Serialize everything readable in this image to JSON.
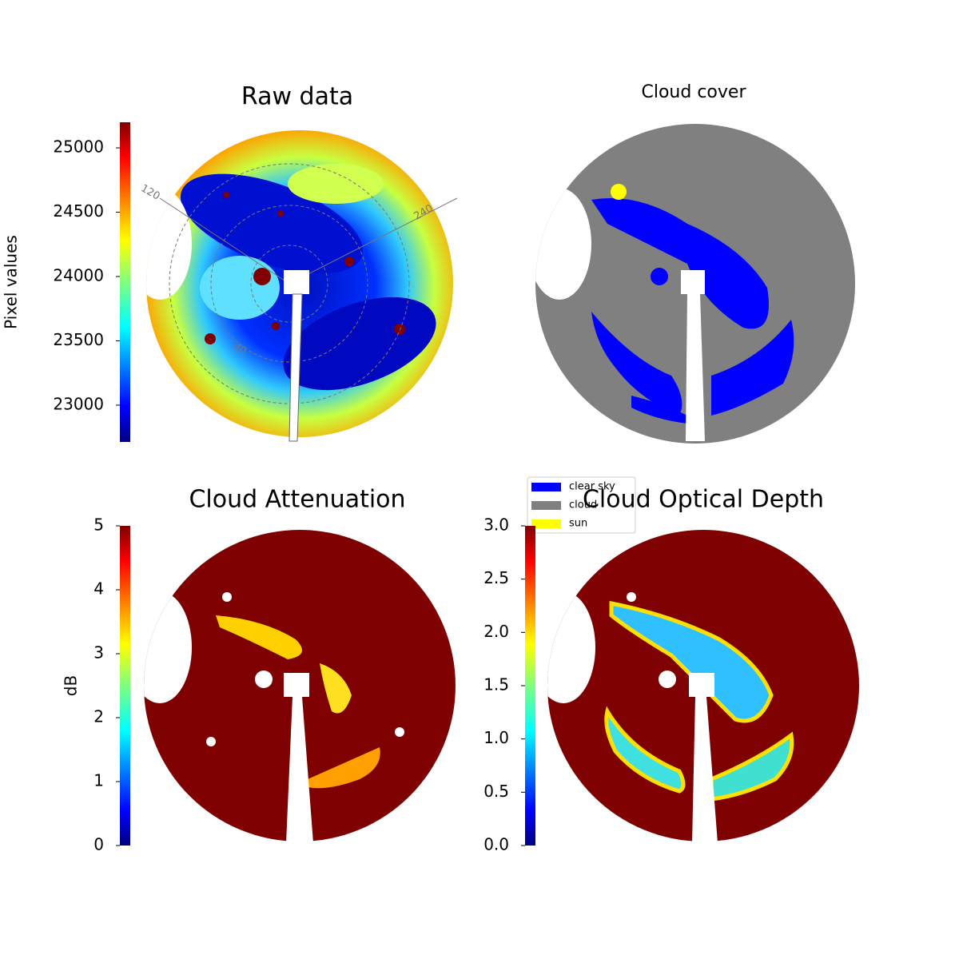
{
  "chart_data": [
    {
      "type": "image",
      "title": "Raw data",
      "ylabel": "Pixel values",
      "colormap": "jet",
      "ylim": [
        22714,
        25199
      ],
      "yticks": [
        23000,
        23500,
        24000,
        24500,
        25000
      ],
      "annotations": [
        "120",
        "240",
        "40"
      ]
    },
    {
      "type": "image",
      "title": "Cloud cover",
      "series": [
        {
          "name": "clear sky",
          "color": "#0000ff"
        },
        {
          "name": "cloud",
          "color": "#808080"
        },
        {
          "name": "sun",
          "color": "#ffff00"
        }
      ]
    },
    {
      "type": "image",
      "title": "Cloud Attenuation",
      "ylabel": "dB",
      "colormap": "jet",
      "ylim": [
        0,
        5
      ],
      "yticks": [
        0,
        1,
        2,
        3,
        4,
        5
      ]
    },
    {
      "type": "image",
      "title": "Cloud Optical Depth",
      "colormap": "jet",
      "ylim": [
        0,
        3
      ],
      "yticks": [
        {
          "value": 0,
          "label": "0.0"
        },
        0.5,
        {
          "value": 1,
          "label": "1.0"
        },
        1.5,
        {
          "value": 2,
          "label": "2.0"
        },
        2.5,
        {
          "value": 3,
          "label": "3.0"
        }
      ]
    }
  ]
}
